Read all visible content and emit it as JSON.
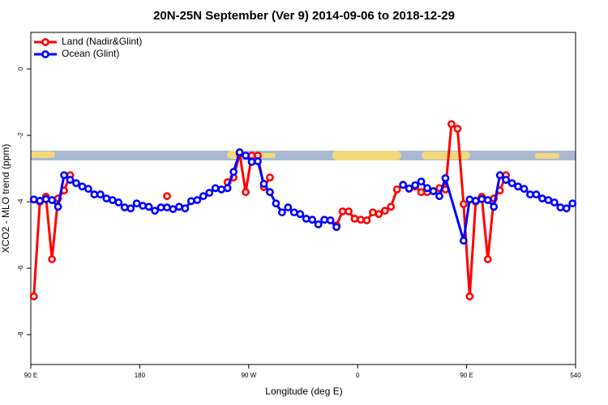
{
  "chart_data": {
    "type": "line",
    "title": "20N-25N September (Ver 9)   2014-09-06 to 2018-12-29",
    "x_label": "Longitude (deg E)",
    "y_label": "XCO2 - MLO trend (ppm)",
    "xlim": [
      90,
      540
    ],
    "xticks": [
      {
        "value": 90,
        "label": "90 E"
      },
      180,
      {
        "value": 270,
        "label": "90 W"
      },
      {
        "value": 360,
        "label": "0"
      },
      {
        "value": 450,
        "label": "90 E"
      },
      540
    ],
    "ylim": [
      -8.9,
      1.1
    ],
    "yticks": [
      0,
      -2,
      -4,
      -6,
      -8
    ],
    "legend": "top-left",
    "series": [
      {
        "name": "Land (Nadir&Glint)",
        "color": "#ff0000",
        "x": [
          92.5,
          97.5,
          102.5,
          107.5,
          112.5,
          117.5,
          122.5,
          162.5,
          202.5,
          242.5,
          252.5,
          257.5,
          262.5,
          267.5,
          272.5,
          277.5,
          282.5,
          287.5,
          317.5,
          342.5,
          347.5,
          352.5,
          357.5,
          362.5,
          367.5,
          372.5,
          377.5,
          382.5,
          387.5,
          392.5,
          397.5,
          402.5,
          407.5,
          412.5,
          417.5,
          422.5,
          427.5,
          432.5,
          437.5,
          442.5,
          447.5,
          452.5,
          457.5,
          462.5,
          467.5,
          472.5,
          477.5,
          482.5
        ],
        "values": [
          -6.85,
          -4.0,
          -3.85,
          -5.73,
          -3.9,
          -3.66,
          -3.2,
          null,
          -3.83,
          null,
          -3.41,
          -3.27,
          -2.55,
          -3.71,
          -2.61,
          -2.61,
          -3.56,
          -3.27,
          null,
          -4.71,
          -4.29,
          -4.29,
          -4.51,
          -4.54,
          -4.56,
          -4.32,
          -4.37,
          -4.27,
          -4.15,
          -3.63,
          -3.49,
          -3.61,
          -3.54,
          -3.71,
          -3.71,
          -3.68,
          -3.59,
          -3.63,
          -1.66,
          -1.8,
          -4.07,
          -6.85,
          -4.0,
          -3.85,
          -5.73,
          -3.9,
          -3.66,
          -3.2
        ]
      },
      {
        "name": "Ocean (Glint)",
        "color": "#0000ff",
        "x": [
          92.5,
          97.5,
          102.5,
          107.5,
          112.5,
          117.5,
          122.5,
          127.5,
          132.5,
          137.5,
          142.5,
          147.5,
          152.5,
          157.5,
          162.5,
          167.5,
          172.5,
          177.5,
          182.5,
          187.5,
          192.5,
          197.5,
          202.5,
          207.5,
          212.5,
          217.5,
          222.5,
          227.5,
          232.5,
          237.5,
          242.5,
          247.5,
          252.5,
          257.5,
          262.5,
          267.5,
          272.5,
          277.5,
          282.5,
          287.5,
          292.5,
          297.5,
          302.5,
          307.5,
          312.5,
          317.5,
          322.5,
          327.5,
          332.5,
          337.5,
          342.5,
          367.5,
          397.5,
          402.5,
          407.5,
          412.5,
          417.5,
          422.5,
          427.5,
          432.5,
          447.5,
          452.5,
          457.5,
          462.5,
          467.5,
          472.5,
          477.5,
          482.5,
          487.5,
          492.5,
          497.5,
          502.5,
          507.5,
          512.5,
          517.5,
          522.5,
          527.5,
          532.5,
          537.5
        ],
        "values": [
          -3.93,
          -3.97,
          -3.92,
          -3.95,
          -4.15,
          -3.2,
          -3.34,
          -3.44,
          -3.54,
          -3.61,
          -3.78,
          -3.78,
          -3.9,
          -3.95,
          -4.02,
          -4.17,
          -4.2,
          -4.05,
          -4.12,
          -4.15,
          -4.27,
          -4.17,
          -4.17,
          -4.22,
          -4.15,
          -4.2,
          -3.98,
          -3.95,
          -3.83,
          -3.73,
          -3.59,
          -3.63,
          -3.59,
          -3.1,
          -2.51,
          -2.61,
          -2.8,
          -2.78,
          -3.46,
          -3.71,
          -4.05,
          -4.32,
          -4.17,
          -4.32,
          -4.37,
          -4.51,
          -4.54,
          -4.68,
          -4.54,
          -4.56,
          -4.76,
          null,
          -3.49,
          -3.6,
          -3.5,
          -3.39,
          -3.59,
          -3.68,
          -3.83,
          -3.29,
          -5.17,
          -3.93,
          -3.97,
          -3.92,
          -3.95,
          -4.15,
          -3.2,
          -3.34,
          -3.44,
          -3.54,
          -3.61,
          -3.78,
          -3.78,
          -3.9,
          -3.95,
          -4.02,
          -4.17,
          -4.2,
          -4.05
        ]
      }
    ]
  }
}
